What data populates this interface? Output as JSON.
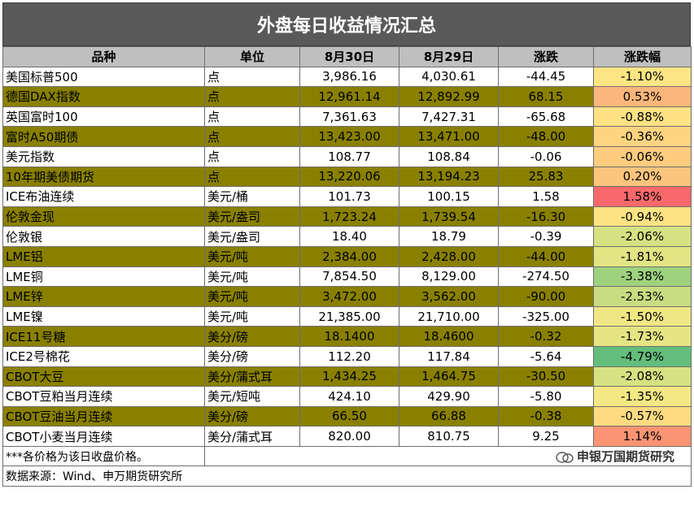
{
  "title": "外盘每日收益情况汇总",
  "headers": [
    "品种",
    "单位",
    "8月30日",
    "8月29日",
    "涨跌",
    "涨跌幅"
  ],
  "rows": [
    {
      "name": "美国标普500",
      "unit": "点",
      "d30": "3,986.16",
      "d29": "4,030.61",
      "chg": "-44.45",
      "pct": "-1.10%",
      "style": "white",
      "pct_color": "#fde583"
    },
    {
      "name": "德国DAX指数",
      "unit": "点",
      "d30": "12,961.14",
      "d29": "12,892.99",
      "chg": "68.15",
      "pct": "0.53%",
      "style": "olive",
      "pct_color": "#fbb67b"
    },
    {
      "name": "英国富时100",
      "unit": "点",
      "d30": "7,361.63",
      "d29": "7,427.31",
      "chg": "-65.68",
      "pct": "-0.88%",
      "style": "white",
      "pct_color": "#fee283"
    },
    {
      "name": "富时A50期债",
      "unit": "点",
      "d30": "13,423.00",
      "d29": "13,471.00",
      "chg": "-48.00",
      "pct": "-0.36%",
      "style": "olive",
      "pct_color": "#fed480"
    },
    {
      "name": "美元指数",
      "unit": "点",
      "d30": "108.77",
      "d29": "108.84",
      "chg": "-0.06",
      "pct": "-0.06%",
      "style": "white",
      "pct_color": "#fdcc7e"
    },
    {
      "name": "10年期美债期货",
      "unit": "点",
      "d30": "13,220.06",
      "d29": "13,194.23",
      "chg": "25.83",
      "pct": "0.20%",
      "style": "olive",
      "pct_color": "#fcc47d"
    },
    {
      "name": "ICE布油连续",
      "unit": "美元/桶",
      "d30": "101.73",
      "d29": "100.15",
      "chg": "1.58",
      "pct": "1.58%",
      "style": "white",
      "pct_color": "#f8696b"
    },
    {
      "name": "伦敦金现",
      "unit": "美元/盎司",
      "d30": "1,723.24",
      "d29": "1,739.54",
      "chg": "-16.30",
      "pct": "-0.94%",
      "style": "olive",
      "pct_color": "#fee383"
    },
    {
      "name": "伦敦银",
      "unit": "美元/盎司",
      "d30": "18.40",
      "d29": "18.79",
      "chg": "-0.39",
      "pct": "-2.06%",
      "style": "white",
      "pct_color": "#d6e282"
    },
    {
      "name": "LME铝",
      "unit": "美元/吨",
      "d30": "2,384.00",
      "d29": "2,428.00",
      "chg": "-44.00",
      "pct": "-1.81%",
      "style": "olive",
      "pct_color": "#e3e483"
    },
    {
      "name": "LME铜",
      "unit": "美元/吨",
      "d30": "7,854.50",
      "d29": "8,129.00",
      "chg": "-274.50",
      "pct": "-3.38%",
      "style": "white",
      "pct_color": "#9fd27f"
    },
    {
      "name": "LME锌",
      "unit": "美元/吨",
      "d30": "3,472.00",
      "d29": "3,562.00",
      "chg": "-90.00",
      "pct": "-2.53%",
      "style": "olive",
      "pct_color": "#c8dd81"
    },
    {
      "name": "LME镍",
      "unit": "美元/吨",
      "d30": "21,385.00",
      "d29": "21,710.00",
      "chg": "-325.00",
      "pct": "-1.50%",
      "style": "white",
      "pct_color": "#f0e784"
    },
    {
      "name": "ICE11号糖",
      "unit": "美分/磅",
      "d30": "18.1400",
      "d29": "18.4600",
      "chg": "-0.32",
      "pct": "-1.73%",
      "style": "olive",
      "pct_color": "#e6e583"
    },
    {
      "name": "ICE2号棉花",
      "unit": "美分/磅",
      "d30": "112.20",
      "d29": "117.84",
      "chg": "-5.64",
      "pct": "-4.79%",
      "style": "white",
      "pct_color": "#63be7b"
    },
    {
      "name": "CBOT大豆",
      "unit": "美分/蒲式耳",
      "d30": "1,434.25",
      "d29": "1,464.75",
      "chg": "-30.50",
      "pct": "-2.08%",
      "style": "olive",
      "pct_color": "#d6e282"
    },
    {
      "name": "CBOT豆粕当月连续",
      "unit": "美元/短吨",
      "d30": "424.10",
      "d29": "429.90",
      "chg": "-5.80",
      "pct": "-1.35%",
      "style": "white",
      "pct_color": "#f4e884"
    },
    {
      "name": "CBOT豆油当月连续",
      "unit": "美分/磅",
      "d30": "66.50",
      "d29": "66.88",
      "chg": "-0.38",
      "pct": "-0.57%",
      "style": "olive",
      "pct_color": "#fedb81"
    },
    {
      "name": "CBOT小麦当月连续",
      "unit": "美分/蒲式耳",
      "d30": "820.00",
      "d29": "810.75",
      "chg": "9.25",
      "pct": "1.14%",
      "style": "white",
      "pct_color": "#fa9473"
    }
  ],
  "footer": {
    "note": "***各价格为该日收盘价格。",
    "source": "数据来源：Wind、申万期货研究所",
    "watermark": "申银万国期货研究"
  }
}
